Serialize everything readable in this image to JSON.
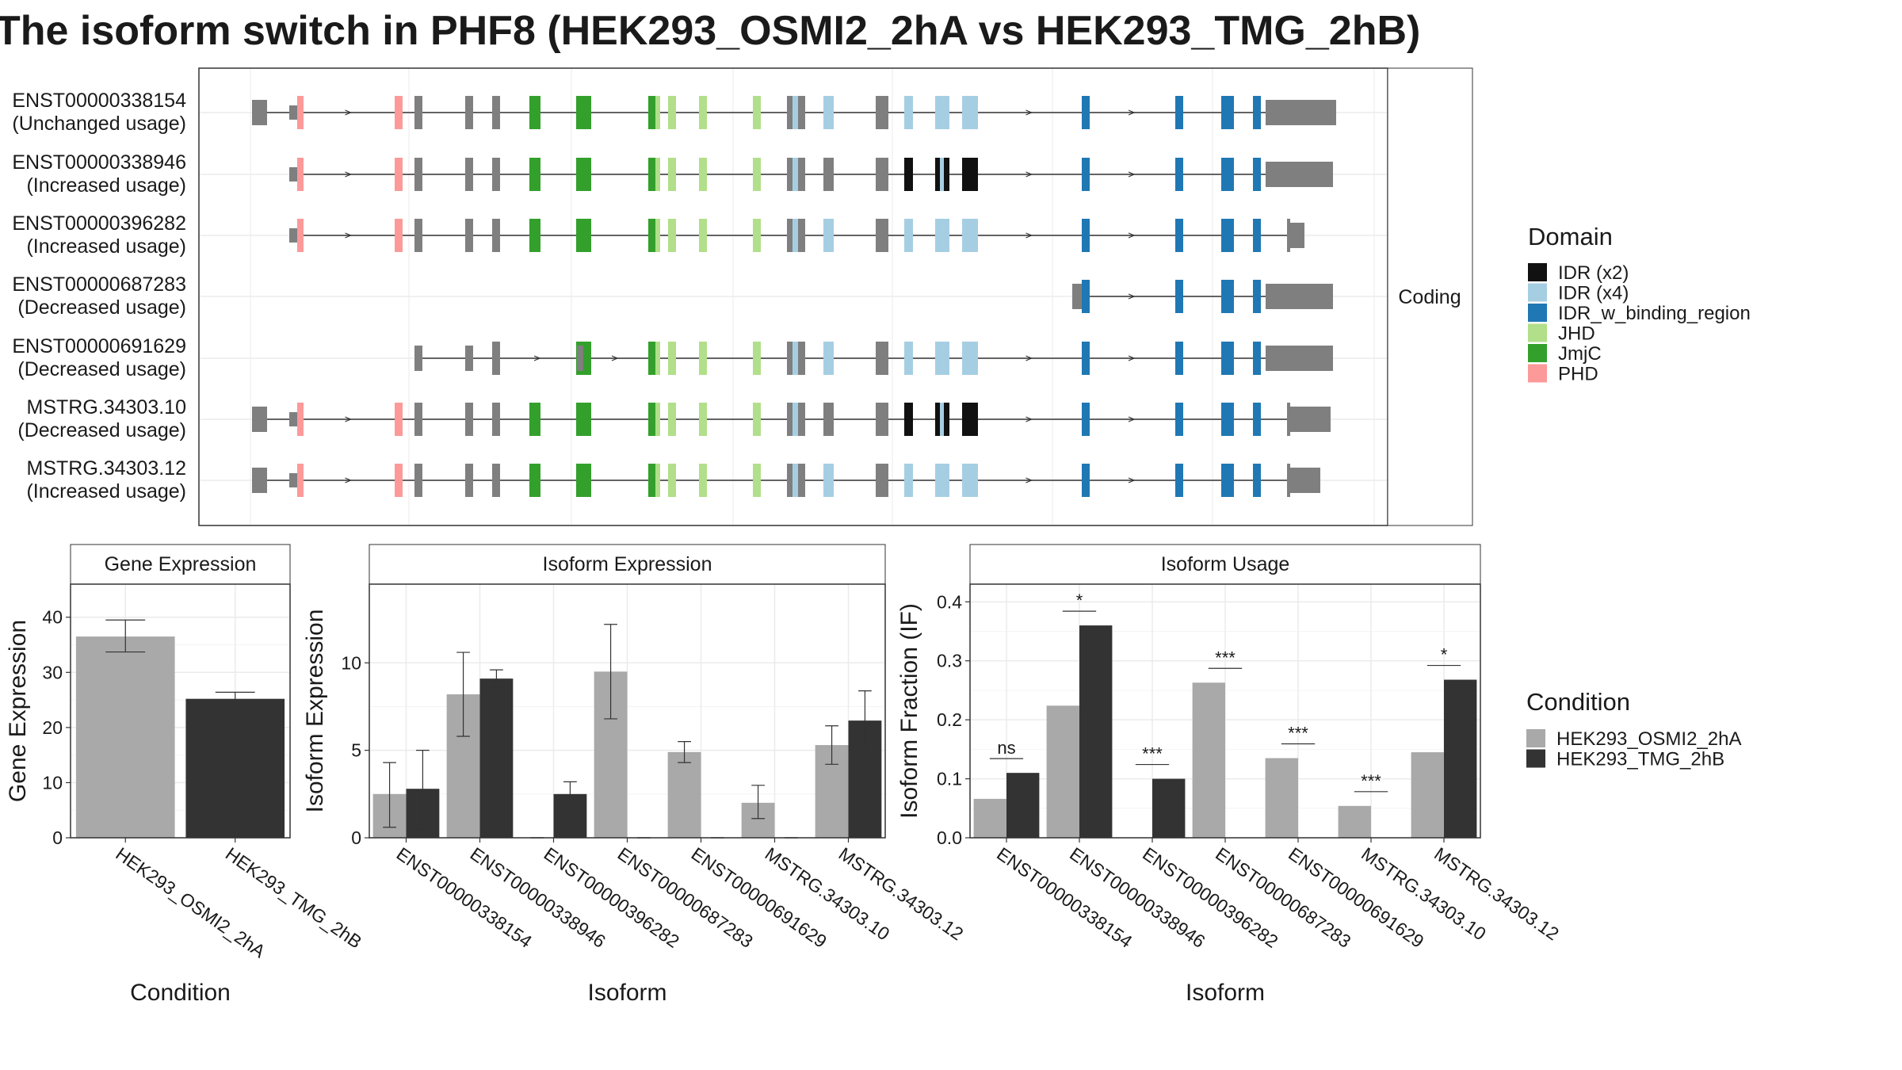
{
  "title": "The isoform switch in PHF8 (HEK293_OSMI2_2hA vs HEK293_TMG_2hB)",
  "colors": {
    "exon_default": "#7f7f7f",
    "cond1": "#a9a9a9",
    "cond2": "#333333",
    "panel_border": "#333333",
    "strip_fill": "#ffffff",
    "grid": "#ebebeb",
    "intron": "#333333"
  },
  "structure_panel": {
    "facet_label": "Coding",
    "transcripts": [
      {
        "id": "ENST00000338154",
        "usage": "(Unchanged usage)"
      },
      {
        "id": "ENST00000338946",
        "usage": "(Increased usage)"
      },
      {
        "id": "ENST00000396282",
        "usage": "(Increased usage)"
      },
      {
        "id": "ENST00000687283",
        "usage": "(Decreased usage)"
      },
      {
        "id": "ENST00000691629",
        "usage": "(Decreased usage)"
      },
      {
        "id": "MSTRG.34303.10",
        "usage": "(Decreased usage)"
      },
      {
        "id": "MSTRG.34303.12",
        "usage": "(Increased usage)"
      }
    ],
    "domain_legend": {
      "title": "Domain",
      "items": [
        {
          "label": "IDR (x2)",
          "color": "#111111"
        },
        {
          "label": "IDR (x4)",
          "color": "#a6cee3"
        },
        {
          "label": "IDR_w_binding_region",
          "color": "#1f78b4"
        },
        {
          "label": "JHD",
          "color": "#b2df8a"
        },
        {
          "label": "JmjC",
          "color": "#33a02c"
        },
        {
          "label": "PHD",
          "color": "#fb9a99"
        }
      ]
    }
  },
  "condition_legend": {
    "title": "Condition",
    "items": [
      {
        "label": "HEK293_OSMI2_2hA",
        "color": "#a9a9a9"
      },
      {
        "label": "HEK293_TMG_2hB",
        "color": "#333333"
      }
    ]
  },
  "chart_data": [
    {
      "type": "bar",
      "title": "Gene Expression",
      "xlabel": "Condition",
      "ylabel": "Gene Expression",
      "ylim": [
        0,
        46
      ],
      "yticks": [
        0,
        10,
        20,
        30,
        40
      ],
      "categories": [
        "HEK293_OSMI2_2hA",
        "HEK293_TMG_2hB"
      ],
      "values": [
        36.5,
        25.2
      ],
      "error_low": [
        33.7,
        24.2
      ],
      "error_high": [
        39.5,
        26.4
      ]
    },
    {
      "type": "bar",
      "title": "Isoform Expression",
      "xlabel": "Isoform",
      "ylabel": "Isoform Expression",
      "ylim": [
        0,
        14.5
      ],
      "yticks": [
        0,
        5,
        10
      ],
      "categories": [
        "ENST00000338154",
        "ENST00000338946",
        "ENST00000396282",
        "ENST00000687283",
        "ENST00000691629",
        "MSTRG.34303.10",
        "MSTRG.34303.12"
      ],
      "series": [
        {
          "name": "HEK293_OSMI2_2hA",
          "values": [
            2.5,
            8.2,
            0,
            9.5,
            4.9,
            2.0,
            5.3
          ],
          "error_low": [
            0.6,
            5.8,
            0,
            6.8,
            4.3,
            1.1,
            4.2
          ],
          "error_high": [
            4.3,
            10.6,
            0,
            12.2,
            5.5,
            3.0,
            6.4
          ]
        },
        {
          "name": "HEK293_TMG_2hB",
          "values": [
            2.8,
            9.1,
            2.5,
            0,
            0,
            0,
            6.7
          ],
          "error_low": [
            0.5,
            8.6,
            1.8,
            0,
            0,
            0,
            5.0
          ],
          "error_high": [
            5.0,
            9.6,
            3.2,
            0,
            0,
            0,
            8.4
          ]
        }
      ]
    },
    {
      "type": "bar",
      "title": "Isoform Usage",
      "xlabel": "Isoform",
      "ylabel": "Isoform Fraction (IF)",
      "ylim": [
        0,
        0.43
      ],
      "yticks": [
        "0.0",
        "0.1",
        "0.2",
        "0.3",
        "0.4"
      ],
      "categories": [
        "ENST00000338154",
        "ENST00000338946",
        "ENST00000396282",
        "ENST00000687283",
        "ENST00000691629",
        "MSTRG.34303.10",
        "MSTRG.34303.12"
      ],
      "series": [
        {
          "name": "HEK293_OSMI2_2hA",
          "values": [
            0.066,
            0.224,
            0.0,
            0.263,
            0.135,
            0.054,
            0.145
          ]
        },
        {
          "name": "HEK293_TMG_2hB",
          "values": [
            0.11,
            0.36,
            0.1,
            0.0,
            0.0,
            0.0,
            0.268
          ]
        }
      ],
      "significance": [
        "ns",
        "*",
        "***",
        "***",
        "***",
        "***",
        "*"
      ]
    }
  ]
}
